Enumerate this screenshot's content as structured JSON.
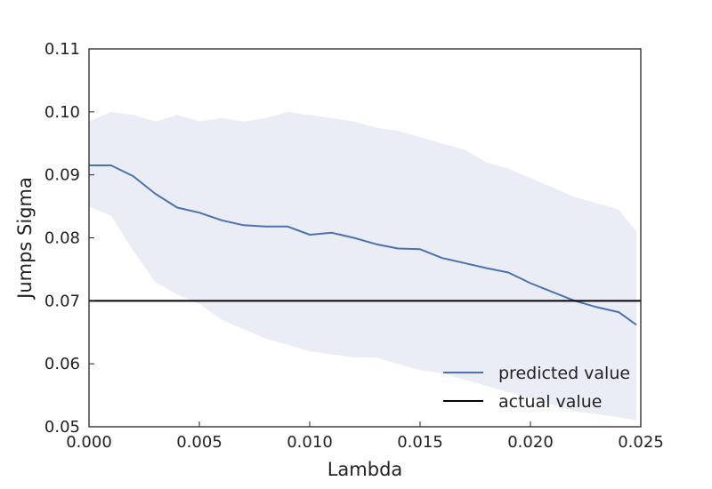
{
  "chart_data": {
    "type": "line",
    "xlabel": "Lambda",
    "ylabel": "Jumps Sigma",
    "xlim": [
      0.0,
      0.025
    ],
    "ylim": [
      0.05,
      0.11
    ],
    "xticks": [
      "0.000",
      "0.005",
      "0.010",
      "0.015",
      "0.020",
      "0.025"
    ],
    "yticks": [
      "0.05",
      "0.06",
      "0.07",
      "0.08",
      "0.09",
      "0.10",
      "0.11"
    ],
    "grid": false,
    "legend_position": "lower-right",
    "colors": {
      "predicted": "#4c72b0",
      "band": "#eaedf5",
      "actual": "#000000"
    },
    "series": [
      {
        "name": "predicted value",
        "kind": "line",
        "x": [
          0.0,
          0.001,
          0.002,
          0.003,
          0.004,
          0.005,
          0.006,
          0.007,
          0.008,
          0.009,
          0.01,
          0.011,
          0.012,
          0.013,
          0.014,
          0.015,
          0.016,
          0.017,
          0.018,
          0.019,
          0.02,
          0.021,
          0.022,
          0.023,
          0.024,
          0.0248
        ],
        "y": [
          0.0915,
          0.0915,
          0.0898,
          0.087,
          0.0848,
          0.084,
          0.0828,
          0.082,
          0.0818,
          0.0818,
          0.0805,
          0.0808,
          0.08,
          0.079,
          0.0783,
          0.0782,
          0.0768,
          0.076,
          0.0752,
          0.0745,
          0.0728,
          0.0714,
          0.07,
          0.069,
          0.0682,
          0.0662
        ]
      },
      {
        "name": "actual value",
        "kind": "hline",
        "y": 0.07
      }
    ],
    "band": {
      "x": [
        0.0,
        0.001,
        0.002,
        0.003,
        0.004,
        0.005,
        0.006,
        0.007,
        0.008,
        0.009,
        0.01,
        0.011,
        0.012,
        0.013,
        0.014,
        0.015,
        0.016,
        0.017,
        0.018,
        0.019,
        0.02,
        0.021,
        0.022,
        0.023,
        0.024,
        0.0248
      ],
      "upper": [
        0.0985,
        0.1,
        0.0995,
        0.0985,
        0.0995,
        0.0985,
        0.099,
        0.0985,
        0.099,
        0.1,
        0.0995,
        0.099,
        0.0985,
        0.0975,
        0.097,
        0.096,
        0.095,
        0.094,
        0.092,
        0.091,
        0.0895,
        0.088,
        0.0865,
        0.0855,
        0.0845,
        0.081
      ],
      "lower": [
        0.085,
        0.0835,
        0.078,
        0.073,
        0.071,
        0.0695,
        0.067,
        0.0655,
        0.064,
        0.063,
        0.062,
        0.0615,
        0.061,
        0.061,
        0.06,
        0.059,
        0.0585,
        0.0575,
        0.0565,
        0.0555,
        0.0545,
        0.0535,
        0.0525,
        0.052,
        0.0515,
        0.051
      ]
    }
  }
}
